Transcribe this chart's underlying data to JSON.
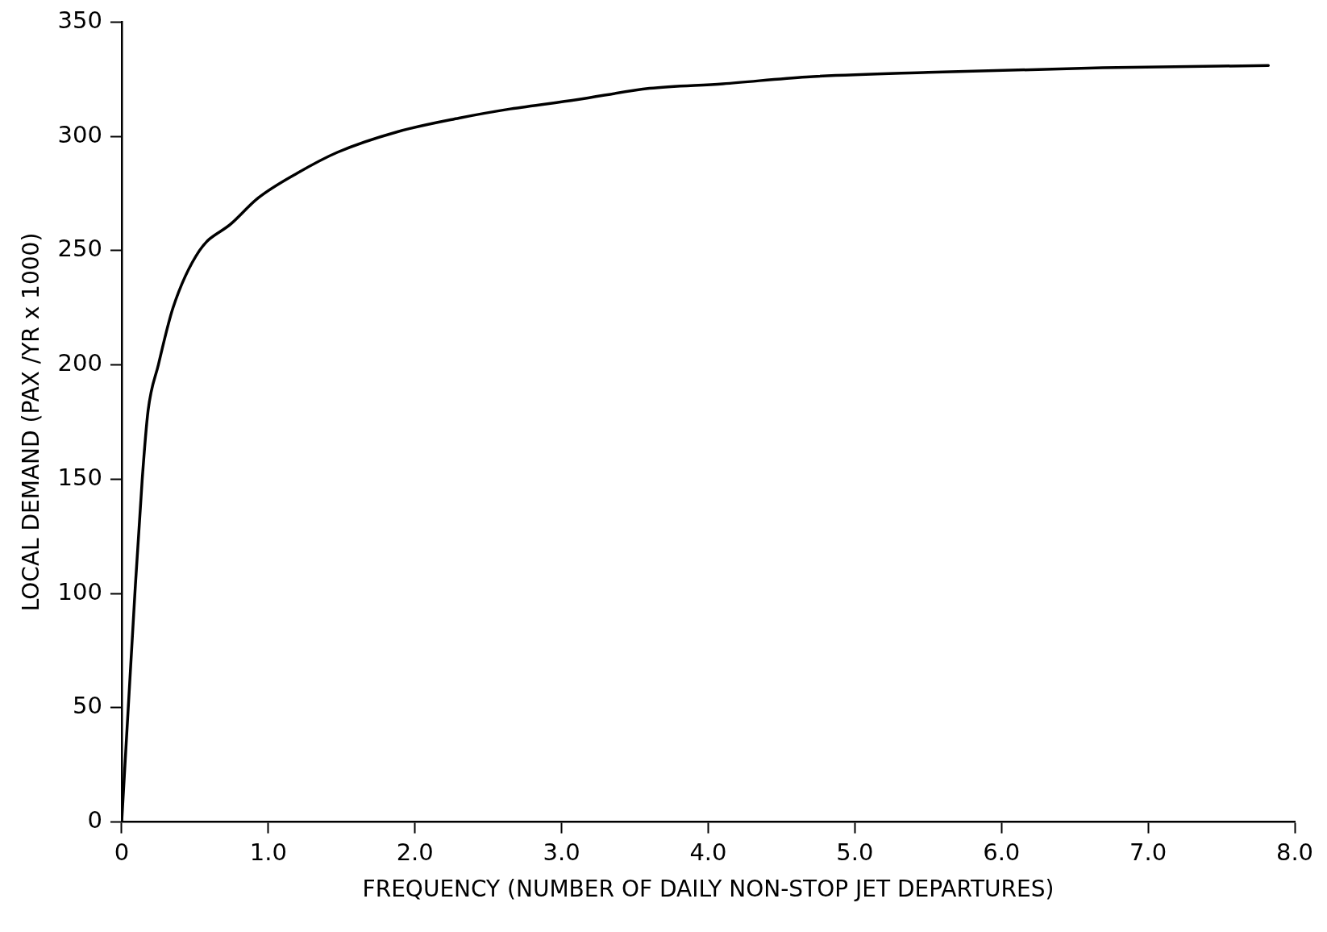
{
  "chart_data": {
    "type": "line",
    "xlabel": "FREQUENCY (NUMBER OF DAILY NON-STOP JET DEPARTURES)",
    "ylabel": "LOCAL DEMAND (PAX /YR x 1000)",
    "x": [
      0,
      0.09,
      0.14,
      0.18,
      0.25,
      0.35,
      0.53,
      0.75,
      0.93,
      1.2,
      1.47,
      1.88,
      2.3,
      2.65,
      3.1,
      3.6,
      4.1,
      4.67,
      5.5,
      6.69,
      7.82
    ],
    "series": [
      {
        "color": "#000000",
        "values": [
          0,
          100,
          150,
          180,
          200,
          225,
          250,
          262,
          273,
          284,
          293,
          302,
          308,
          312,
          316,
          321,
          323,
          326,
          328,
          330,
          331
        ]
      }
    ],
    "xlim": [
      0,
      8
    ],
    "xticks": [
      {
        "value": 0,
        "label": "0"
      },
      {
        "value": 1,
        "label": "1.0"
      },
      {
        "value": 2,
        "label": "2.0"
      },
      {
        "value": 3,
        "label": "3.0"
      },
      {
        "value": 4,
        "label": "4.0"
      },
      {
        "value": 5,
        "label": "5.0"
      },
      {
        "value": 6,
        "label": "6.0"
      },
      {
        "value": 7,
        "label": "7.0"
      },
      {
        "value": 8,
        "label": "8.0"
      }
    ],
    "ylim": [
      0,
      350
    ],
    "yticks": [
      0,
      50,
      100,
      150,
      200,
      250,
      300,
      350
    ],
    "grid": false,
    "legend": false,
    "marker": "none",
    "line_style": "solid"
  }
}
